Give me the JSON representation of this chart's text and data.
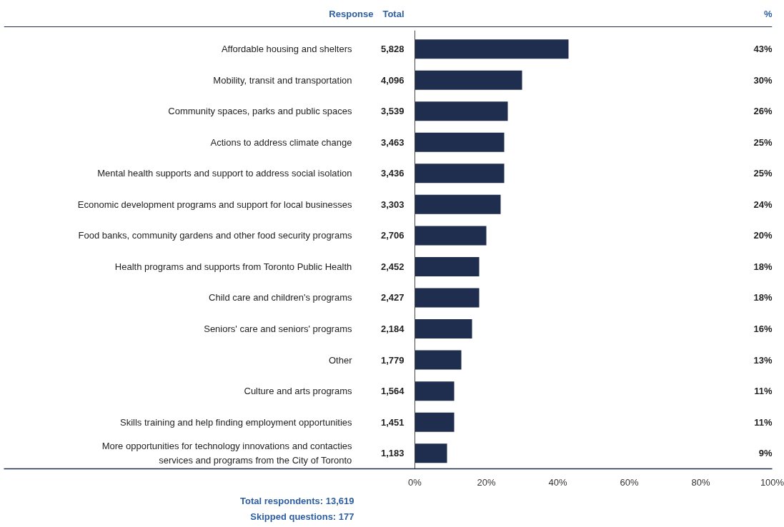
{
  "chart_data": {
    "type": "bar",
    "orientation": "horizontal",
    "ylabel": "Response",
    "categories": [
      "Affordable housing and shelters",
      "Mobility, transit and transportation",
      "Community spaces, parks and public spaces",
      "Actions to address climate change",
      "Mental health supports and support to address social isolation",
      "Economic development programs and support for local businesses",
      "Food banks, community gardens and other food security programs",
      "Health programs and supports from Toronto Public Health",
      "Child care and children's programs",
      "Seniors' care and seniors' programs",
      "Other",
      "Culture and arts programs",
      "Skills training and help finding employment opportunities",
      "More opportunities for technology innovations and contacties services and programs from the City of Toronto"
    ],
    "values": [
      43,
      30,
      26,
      25,
      25,
      24,
      20,
      18,
      18,
      16,
      13,
      11,
      11,
      9
    ],
    "value_labels": [
      "43%",
      "30%",
      "26%",
      "25%",
      "25%",
      "24%",
      "20%",
      "18%",
      "18%",
      "16%",
      "13%",
      "11%",
      "11%",
      "9%"
    ],
    "color": "#1f2d4e",
    "xlim": [
      0,
      100
    ],
    "xticks": [
      {
        "value": 0,
        "label": "0%"
      },
      {
        "value": 20,
        "label": "20%"
      },
      {
        "value": 40,
        "label": "40%"
      },
      {
        "value": 60,
        "label": "60%"
      },
      {
        "value": 80,
        "label": "80%"
      },
      {
        "value": 100,
        "label": "100%"
      }
    ],
    "grid": false,
    "annotations": [
      "Total",
      "%",
      "Total respondents: 13,619",
      "Skipped questions: 177",
      "5,828",
      "4,096",
      "3,539",
      "3,463",
      "3,436",
      "3,303",
      "2,706",
      "2,452",
      "2,427",
      "2,184",
      "1,779",
      "1,564",
      "1,451",
      "1,183"
    ]
  }
}
